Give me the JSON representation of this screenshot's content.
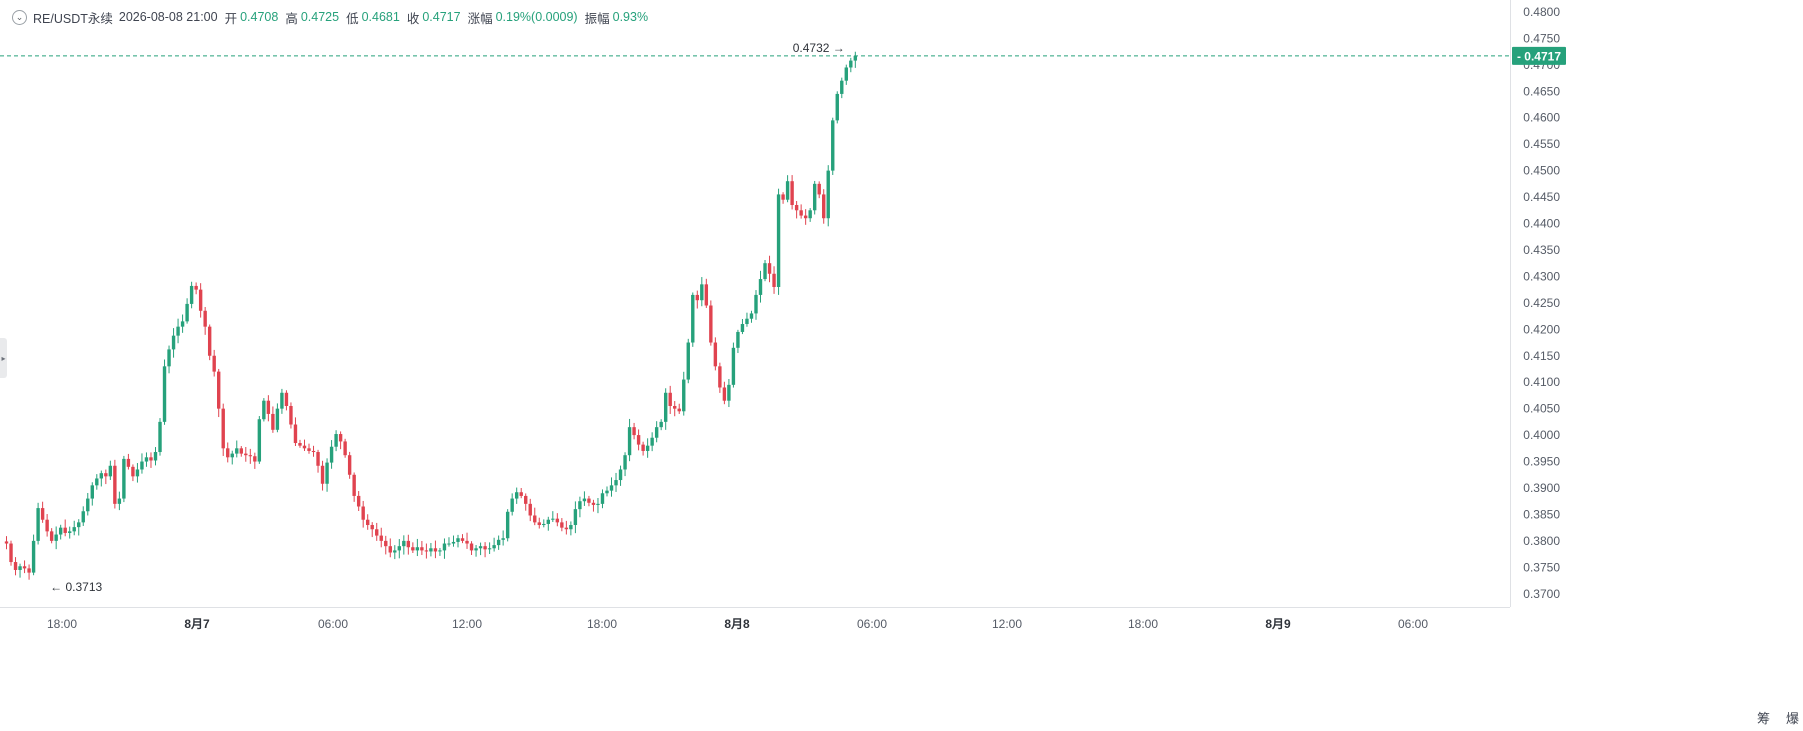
{
  "ohlc": {
    "symbol": "RE/USDT永续",
    "datetime": "2026-08-08 21:00",
    "open_label": "开",
    "open": "0.4708",
    "high_label": "高",
    "high": "0.4725",
    "low_label": "低",
    "low": "0.4681",
    "close_label": "收",
    "close": "0.4717",
    "change_label": "涨幅",
    "change": "0.19%(0.0009)",
    "amplitude_label": "振幅",
    "amplitude": "0.93%"
  },
  "bottom_icons": {
    "left": "筹",
    "right": "爆"
  },
  "colors": {
    "up": "#26a17b",
    "down": "#e0434f",
    "text": "#3f4450",
    "grid": "#eceef1",
    "price_line": "#26a17b"
  },
  "chart_data": {
    "type": "candlestick",
    "interval": "1h",
    "y_range": [
      0.3675,
      0.4815
    ],
    "y_ticks": [
      "0.4800",
      "0.4750",
      "0.4700",
      "0.4650",
      "0.4600",
      "0.4550",
      "0.4500",
      "0.4450",
      "0.4400",
      "0.4350",
      "0.4300",
      "0.4250",
      "0.4200",
      "0.4150",
      "0.4100",
      "0.4050",
      "0.4000",
      "0.3950",
      "0.3900",
      "0.3850",
      "0.3800",
      "0.3750",
      "0.3700"
    ],
    "x_ticks": [
      "18:00",
      "8月7",
      "06:00",
      "12:00",
      "18:00",
      "8月8",
      "06:00",
      "12:00",
      "18:00",
      "8月9",
      "06:00"
    ],
    "current_price": "0.4717",
    "high_marker": "0.4732",
    "low_marker": "0.3713",
    "closes": [
      0.3795,
      0.376,
      0.3745,
      0.3752,
      0.3748,
      0.374,
      0.38,
      0.3862,
      0.384,
      0.3818,
      0.38,
      0.3812,
      0.3825,
      0.3815,
      0.3818,
      0.3826,
      0.3835,
      0.3856,
      0.388,
      0.3905,
      0.3918,
      0.3928,
      0.3922,
      0.3942,
      0.387,
      0.388,
      0.3955,
      0.394,
      0.3922,
      0.3935,
      0.395,
      0.3958,
      0.3952,
      0.3968,
      0.4025,
      0.413,
      0.4162,
      0.4188,
      0.4205,
      0.4215,
      0.4248,
      0.4282,
      0.4275,
      0.4235,
      0.4205,
      0.415,
      0.412,
      0.405,
      0.3975,
      0.3958,
      0.3965,
      0.3975,
      0.3965,
      0.3962,
      0.396,
      0.395,
      0.403,
      0.4065,
      0.404,
      0.401,
      0.405,
      0.408,
      0.4055,
      0.402,
      0.3985,
      0.398,
      0.3975,
      0.397,
      0.3968,
      0.3942,
      0.3908,
      0.3948,
      0.3978,
      0.4002,
      0.3988,
      0.3962,
      0.3925,
      0.3885,
      0.3865,
      0.384,
      0.383,
      0.3822,
      0.381,
      0.38,
      0.379,
      0.3778,
      0.3782,
      0.379,
      0.38,
      0.3788,
      0.3782,
      0.3788,
      0.3782,
      0.378,
      0.3786,
      0.378,
      0.3782,
      0.3795,
      0.3795,
      0.3798,
      0.3805,
      0.38,
      0.3795,
      0.3782,
      0.3786,
      0.379,
      0.3784,
      0.3786,
      0.3792,
      0.3802,
      0.3805,
      0.3855,
      0.388,
      0.3892,
      0.3885,
      0.387,
      0.3848,
      0.3835,
      0.383,
      0.3832,
      0.384,
      0.3842,
      0.3835,
      0.3825,
      0.3822,
      0.383,
      0.386,
      0.3875,
      0.388,
      0.3872,
      0.3868,
      0.387,
      0.389,
      0.3895,
      0.3905,
      0.3915,
      0.3935,
      0.3962,
      0.4015,
      0.4,
      0.3982,
      0.397,
      0.398,
      0.3995,
      0.4015,
      0.4025,
      0.408,
      0.4055,
      0.405,
      0.4045,
      0.4105,
      0.4175,
      0.4265,
      0.4255,
      0.4285,
      0.4245,
      0.4175,
      0.413,
      0.409,
      0.4065,
      0.4095,
      0.4165,
      0.4195,
      0.421,
      0.422,
      0.423,
      0.4265,
      0.4295,
      0.4325,
      0.4305,
      0.428,
      0.4455,
      0.4445,
      0.448,
      0.4435,
      0.4425,
      0.4415,
      0.441,
      0.4425,
      0.4475,
      0.4455,
      0.441,
      0.45,
      0.4595,
      0.4645,
      0.467,
      0.4695,
      0.4708,
      0.4717
    ]
  }
}
